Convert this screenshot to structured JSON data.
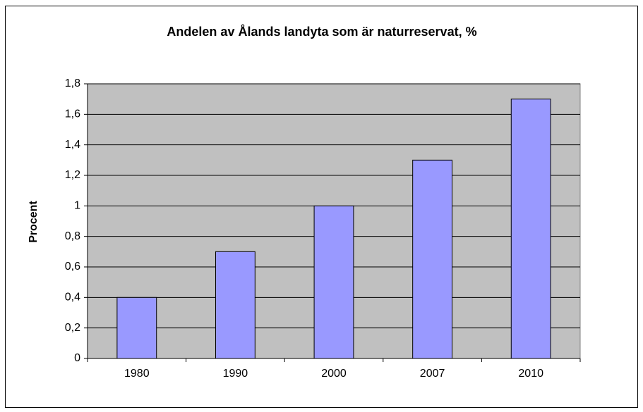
{
  "chart_data": {
    "type": "bar",
    "title": "Andelen av Ålands landyta som är naturreservat, %",
    "y_label": "Procent",
    "categories": [
      "1980",
      "1990",
      "2000",
      "2007",
      "2010"
    ],
    "values": [
      0.4,
      0.7,
      1.0,
      1.3,
      1.7
    ],
    "color": "#9999ff",
    "ylim": [
      0,
      1.8
    ],
    "yticks": [
      0,
      {
        "value": 0.2,
        "label": "0,2"
      },
      {
        "value": 0.4,
        "label": "0,4"
      },
      {
        "value": 0.6,
        "label": "0,6"
      },
      {
        "value": 0.8,
        "label": "0,8"
      },
      1,
      {
        "value": 1.2,
        "label": "1,2"
      },
      {
        "value": 1.4,
        "label": "1,4"
      },
      {
        "value": 1.6,
        "label": "1,6"
      },
      {
        "value": 1.8,
        "label": "1,8"
      }
    ],
    "grid": true
  }
}
